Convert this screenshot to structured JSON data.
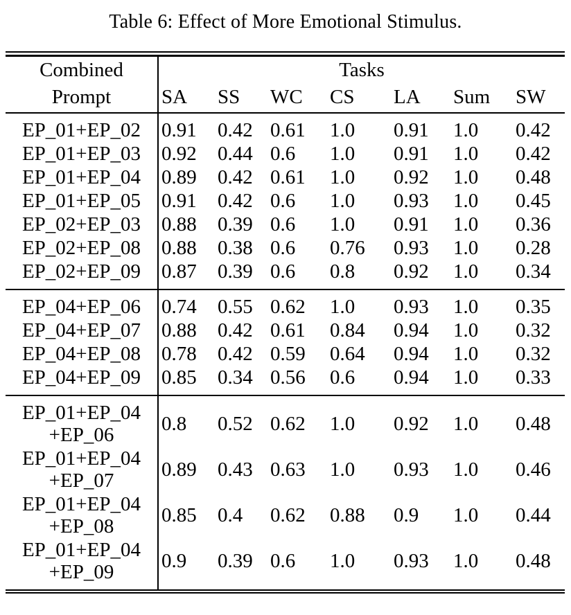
{
  "caption": "Table 6: Effect of More Emotional Stimulus.",
  "colors": {
    "background": "#ffffff",
    "text": "#000000",
    "rule": "#000000"
  },
  "table": {
    "header": {
      "col1_line1": "Combined",
      "col1_line2": "Prompt",
      "tasks_label": "Tasks",
      "task_columns": [
        "SA",
        "SS",
        "WC",
        "CS",
        "LA",
        "Sum",
        "SW"
      ]
    },
    "groups": [
      {
        "rows": [
          {
            "prompt": [
              "EP_01+EP_02"
            ],
            "values": [
              "0.91",
              "0.42",
              "0.61",
              "1.0",
              "0.91",
              "1.0",
              "0.42"
            ]
          },
          {
            "prompt": [
              "EP_01+EP_03"
            ],
            "values": [
              "0.92",
              "0.44",
              "0.6",
              "1.0",
              "0.91",
              "1.0",
              "0.42"
            ]
          },
          {
            "prompt": [
              "EP_01+EP_04"
            ],
            "values": [
              "0.89",
              "0.42",
              "0.61",
              "1.0",
              "0.92",
              "1.0",
              "0.48"
            ]
          },
          {
            "prompt": [
              "EP_01+EP_05"
            ],
            "values": [
              "0.91",
              "0.42",
              "0.6",
              "1.0",
              "0.93",
              "1.0",
              "0.45"
            ]
          },
          {
            "prompt": [
              "EP_02+EP_03"
            ],
            "values": [
              "0.88",
              "0.39",
              "0.6",
              "1.0",
              "0.91",
              "1.0",
              "0.36"
            ]
          },
          {
            "prompt": [
              "EP_02+EP_08"
            ],
            "values": [
              "0.88",
              "0.38",
              "0.6",
              "0.76",
              "0.93",
              "1.0",
              "0.28"
            ]
          },
          {
            "prompt": [
              "EP_02+EP_09"
            ],
            "values": [
              "0.87",
              "0.39",
              "0.6",
              "0.8",
              "0.92",
              "1.0",
              "0.34"
            ]
          }
        ]
      },
      {
        "rows": [
          {
            "prompt": [
              "EP_04+EP_06"
            ],
            "values": [
              "0.74",
              "0.55",
              "0.62",
              "1.0",
              "0.93",
              "1.0",
              "0.35"
            ]
          },
          {
            "prompt": [
              "EP_04+EP_07"
            ],
            "values": [
              "0.88",
              "0.42",
              "0.61",
              "0.84",
              "0.94",
              "1.0",
              "0.32"
            ]
          },
          {
            "prompt": [
              "EP_04+EP_08"
            ],
            "values": [
              "0.78",
              "0.42",
              "0.59",
              "0.64",
              "0.94",
              "1.0",
              "0.32"
            ]
          },
          {
            "prompt": [
              "EP_04+EP_09"
            ],
            "values": [
              "0.85",
              "0.34",
              "0.56",
              "0.6",
              "0.94",
              "1.0",
              "0.33"
            ]
          }
        ]
      },
      {
        "rows": [
          {
            "prompt": [
              "EP_01+EP_04",
              "+EP_06"
            ],
            "values": [
              "0.8",
              "0.52",
              "0.62",
              "1.0",
              "0.92",
              "1.0",
              "0.48"
            ]
          },
          {
            "prompt": [
              "EP_01+EP_04",
              "+EP_07"
            ],
            "values": [
              "0.89",
              "0.43",
              "0.63",
              "1.0",
              "0.93",
              "1.0",
              "0.46"
            ]
          },
          {
            "prompt": [
              "EP_01+EP_04",
              "+EP_08"
            ],
            "values": [
              "0.85",
              "0.4",
              "0.62",
              "0.88",
              "0.9",
              "1.0",
              "0.44"
            ]
          },
          {
            "prompt": [
              "EP_01+EP_04",
              "+EP_09"
            ],
            "values": [
              "0.9",
              "0.39",
              "0.6",
              "1.0",
              "0.93",
              "1.0",
              "0.48"
            ]
          }
        ]
      }
    ]
  }
}
